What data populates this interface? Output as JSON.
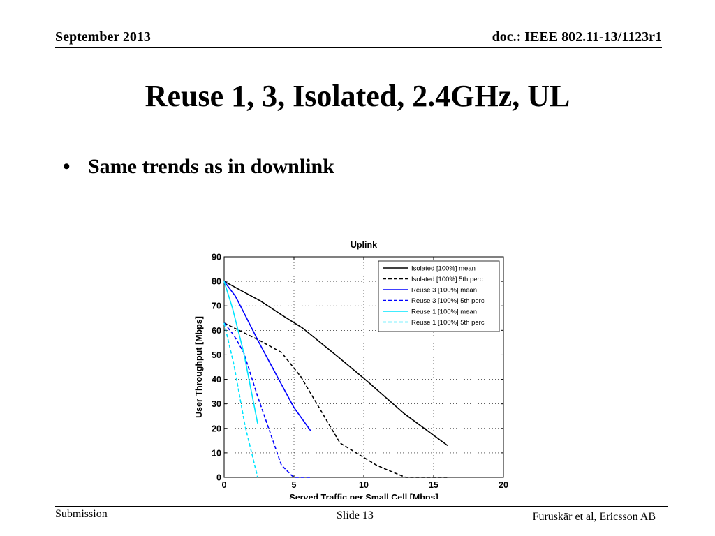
{
  "header": {
    "date": "September 2013",
    "doc_id": "doc.: IEEE 802.11-13/1123r1"
  },
  "slide": {
    "title": "Reuse 1, 3, Isolated, 2.4GHz, UL",
    "bullet_symbol": "•",
    "bullet_text": "Same trends as in downlink"
  },
  "footer": {
    "left": "Submission",
    "center": "Slide 13",
    "right": "Furuskär et al, Ericsson AB"
  },
  "colors": {
    "black": "#000000",
    "blue": "#0000ff",
    "cyan": "#00e5ff"
  },
  "chart_data": {
    "type": "line",
    "title": "Uplink",
    "xlabel": "Served Traffic per Small Cell [Mbps]",
    "ylabel": "User Throughput [Mbps]",
    "xlim": [
      0,
      20
    ],
    "ylim": [
      0,
      90
    ],
    "xticks": [
      0,
      5,
      10,
      15,
      20
    ],
    "yticks": [
      0,
      10,
      20,
      30,
      40,
      50,
      60,
      70,
      80,
      90
    ],
    "grid": true,
    "legend_position": "top-right",
    "series": [
      {
        "name": "Isolated [100%] mean",
        "color": "#000000",
        "dash": "solid",
        "x": [
          0,
          1.3,
          2.6,
          4.2,
          5.6,
          8.2,
          10.3,
          12.9,
          16
        ],
        "y": [
          80,
          76,
          72,
          66,
          61,
          49,
          39,
          26,
          13
        ]
      },
      {
        "name": "Isolated [100%] 5th perc",
        "color": "#000000",
        "dash": "dashed",
        "x": [
          0,
          2.5,
          4.1,
          5.5,
          8.3,
          10.9,
          11.5,
          13,
          16
        ],
        "y": [
          63,
          56,
          51,
          41,
          14,
          5,
          3.5,
          0,
          0
        ]
      },
      {
        "name": "Reuse 3 [100%] mean",
        "color": "#0000ff",
        "dash": "solid",
        "x": [
          0,
          0.8,
          1.3,
          2.5,
          4.1,
          5,
          6.2
        ],
        "y": [
          80,
          74,
          68.5,
          55,
          38,
          28.5,
          19
        ]
      },
      {
        "name": "Reuse 3 [100%] 5th perc",
        "color": "#0000ff",
        "dash": "dashed",
        "x": [
          0,
          0.7,
          1.4,
          2.4,
          4.1,
          4.8,
          5,
          6.2
        ],
        "y": [
          63,
          58,
          51,
          33,
          5,
          1,
          0,
          0
        ]
      },
      {
        "name": "Reuse 1 [100%] mean",
        "color": "#00e5ff",
        "dash": "solid",
        "x": [
          0,
          0.6,
          1.4,
          2.4
        ],
        "y": [
          80,
          69,
          51,
          22
        ]
      },
      {
        "name": "Reuse 1 [100%] 5th perc",
        "color": "#00e5ff",
        "dash": "dashed",
        "x": [
          0,
          0.7,
          1.5,
          2.4
        ],
        "y": [
          63,
          46,
          21,
          0
        ]
      }
    ]
  }
}
